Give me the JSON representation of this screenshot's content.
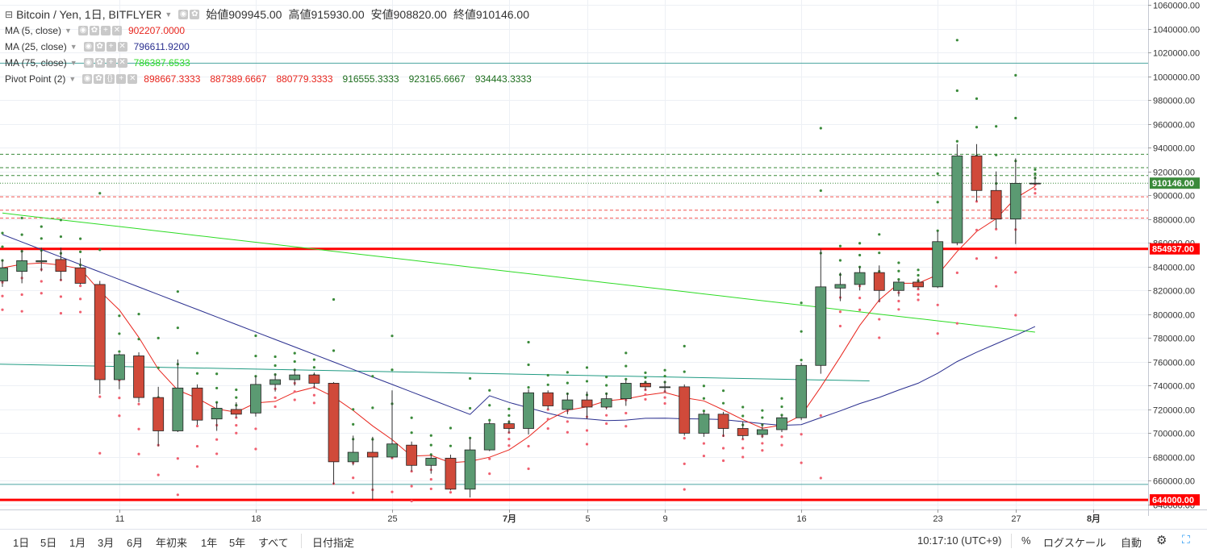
{
  "header": {
    "symbol": "Bitcoin / Yen, 1日, BITFLYER",
    "ohlc": [
      {
        "label": "始値",
        "value": "909945.00"
      },
      {
        "label": "高値",
        "value": "915930.00"
      },
      {
        "label": "安値",
        "value": "908820.00"
      },
      {
        "label": "終値",
        "value": "910146.00"
      }
    ]
  },
  "indicators": [
    {
      "name": "MA (5, close)",
      "values": [
        "902207.0000"
      ],
      "colors": [
        "#e8251d"
      ]
    },
    {
      "name": "MA (25, close)",
      "values": [
        "796611.9200"
      ],
      "colors": [
        "#2a2f8f"
      ]
    },
    {
      "name": "MA (75, close)",
      "values": [
        "786387.6533"
      ],
      "colors": [
        "#2ddb24"
      ]
    },
    {
      "name": "Pivot Point (2)",
      "values": [
        "898667.3333",
        "887389.6667",
        "880779.3333",
        "916555.3333",
        "923165.6667",
        "934443.3333"
      ],
      "colors": [
        "#e8251d",
        "#e8251d",
        "#e8251d",
        "#1e6e1e",
        "#1e6e1e",
        "#1e6e1e"
      ]
    }
  ],
  "price_axis": {
    "ticks": [
      "1060000.00",
      "1040000.00",
      "1020000.00",
      "1000000.00",
      "980000.00",
      "960000.00",
      "940000.00",
      "920000.00",
      "900000.00",
      "880000.00",
      "860000.00",
      "840000.00",
      "820000.00",
      "800000.00",
      "780000.00",
      "760000.00",
      "740000.00",
      "720000.00",
      "700000.00",
      "680000.00",
      "660000.00",
      "640000.00"
    ],
    "last_price_label": "910146.00",
    "red_level_labels": [
      "854937.00",
      "644000.00"
    ]
  },
  "time_axis": {
    "labels": [
      "11",
      "18",
      "25",
      "7月",
      "5",
      "9",
      "16",
      "23",
      "27",
      "8月"
    ]
  },
  "bottom_bar": {
    "ranges": [
      "1日",
      "5日",
      "1月",
      "3月",
      "6月",
      "年初来",
      "1年",
      "5年",
      "すべて"
    ],
    "date_range_label": "日付指定",
    "time": "10:17:10 (UTC+9)",
    "percent_label": "%",
    "log_label": "ログスケール",
    "auto_label": "自動"
  },
  "chart_data": {
    "type": "candlestick",
    "y_range": [
      636000,
      1061000
    ],
    "up_color": "#5b9a72",
    "down_color": "#d04a3a",
    "candles": [
      {
        "o": 828000,
        "h": 846000,
        "l": 823000,
        "c": 839000
      },
      {
        "o": 836000,
        "h": 854000,
        "l": 826000,
        "c": 845000
      },
      {
        "o": 844000,
        "h": 856000,
        "l": 836000,
        "c": 845000
      },
      {
        "o": 846000,
        "h": 856000,
        "l": 828000,
        "c": 836000
      },
      {
        "o": 839000,
        "h": 847000,
        "l": 825000,
        "c": 826000
      },
      {
        "o": 825000,
        "h": 828000,
        "l": 733000,
        "c": 745000
      },
      {
        "o": 745000,
        "h": 767000,
        "l": 737000,
        "c": 766000
      },
      {
        "o": 765000,
        "h": 768000,
        "l": 726000,
        "c": 730000
      },
      {
        "o": 730000,
        "h": 739000,
        "l": 689000,
        "c": 702000
      },
      {
        "o": 702000,
        "h": 762000,
        "l": 701000,
        "c": 738000
      },
      {
        "o": 738000,
        "h": 741000,
        "l": 707000,
        "c": 711000
      },
      {
        "o": 712000,
        "h": 726000,
        "l": 702000,
        "c": 721000
      },
      {
        "o": 720000,
        "h": 726000,
        "l": 713000,
        "c": 716000
      },
      {
        "o": 717000,
        "h": 748000,
        "l": 714000,
        "c": 741000
      },
      {
        "o": 741000,
        "h": 750000,
        "l": 735000,
        "c": 745000
      },
      {
        "o": 745000,
        "h": 754000,
        "l": 740000,
        "c": 749000
      },
      {
        "o": 749000,
        "h": 751000,
        "l": 738000,
        "c": 742000
      },
      {
        "o": 742000,
        "h": 743000,
        "l": 657000,
        "c": 676000
      },
      {
        "o": 676000,
        "h": 698000,
        "l": 673000,
        "c": 684000
      },
      {
        "o": 684000,
        "h": 697000,
        "l": 644000,
        "c": 680000
      },
      {
        "o": 680000,
        "h": 736000,
        "l": 679000,
        "c": 691000
      },
      {
        "o": 690000,
        "h": 693000,
        "l": 668000,
        "c": 673000
      },
      {
        "o": 673000,
        "h": 682000,
        "l": 666000,
        "c": 679000
      },
      {
        "o": 679000,
        "h": 682000,
        "l": 652000,
        "c": 653000
      },
      {
        "o": 653000,
        "h": 696000,
        "l": 646000,
        "c": 686000
      },
      {
        "o": 686000,
        "h": 710000,
        "l": 685000,
        "c": 708000
      },
      {
        "o": 708000,
        "h": 711000,
        "l": 700000,
        "c": 704000
      },
      {
        "o": 704000,
        "h": 737000,
        "l": 699000,
        "c": 734000
      },
      {
        "o": 734000,
        "h": 736000,
        "l": 720000,
        "c": 723000
      },
      {
        "o": 720000,
        "h": 734000,
        "l": 716000,
        "c": 728000
      },
      {
        "o": 728000,
        "h": 735000,
        "l": 712000,
        "c": 722000
      },
      {
        "o": 722000,
        "h": 734000,
        "l": 720000,
        "c": 729000
      },
      {
        "o": 729000,
        "h": 745000,
        "l": 723000,
        "c": 742000
      },
      {
        "o": 742000,
        "h": 744000,
        "l": 736000,
        "c": 739000
      },
      {
        "o": 739000,
        "h": 744000,
        "l": 734000,
        "c": 739000
      },
      {
        "o": 739000,
        "h": 741000,
        "l": 698000,
        "c": 700000
      },
      {
        "o": 700000,
        "h": 718000,
        "l": 697000,
        "c": 716000
      },
      {
        "o": 716000,
        "h": 718000,
        "l": 697000,
        "c": 704000
      },
      {
        "o": 704000,
        "h": 710000,
        "l": 695000,
        "c": 698000
      },
      {
        "o": 699000,
        "h": 708000,
        "l": 696000,
        "c": 703000
      },
      {
        "o": 703000,
        "h": 715000,
        "l": 701000,
        "c": 713000
      },
      {
        "o": 713000,
        "h": 759000,
        "l": 711000,
        "c": 757000
      },
      {
        "o": 757000,
        "h": 855000,
        "l": 750000,
        "c": 823000
      },
      {
        "o": 822000,
        "h": 835000,
        "l": 811000,
        "c": 825000
      },
      {
        "o": 825000,
        "h": 840000,
        "l": 820000,
        "c": 835000
      },
      {
        "o": 835000,
        "h": 841000,
        "l": 810000,
        "c": 820000
      },
      {
        "o": 820000,
        "h": 829000,
        "l": 815000,
        "c": 827000
      },
      {
        "o": 827000,
        "h": 830000,
        "l": 821000,
        "c": 823000
      },
      {
        "o": 823000,
        "h": 870000,
        "l": 822000,
        "c": 861000
      },
      {
        "o": 860000,
        "h": 943000,
        "l": 858000,
        "c": 933000
      },
      {
        "o": 933000,
        "h": 943000,
        "l": 895000,
        "c": 904000
      },
      {
        "o": 904000,
        "h": 920000,
        "l": 872000,
        "c": 880000
      },
      {
        "o": 880000,
        "h": 931000,
        "l": 859000,
        "c": 910000
      },
      {
        "o": 909945,
        "h": 915930,
        "l": 908820,
        "c": 910146
      }
    ]
  }
}
